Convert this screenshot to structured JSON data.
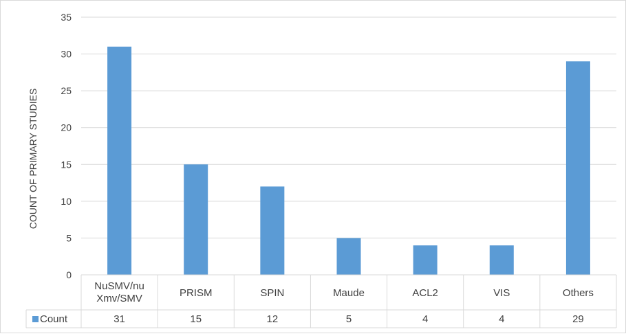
{
  "chart_data": {
    "type": "bar",
    "categories": [
      "NuSMV/nuXmv/SMV",
      "PRISM",
      "SPIN",
      "Maude",
      "ACL2",
      "VIS",
      "Others"
    ],
    "category_label_lines": [
      [
        "NuSMV/nu",
        "Xmv/SMV"
      ],
      [
        "PRISM"
      ],
      [
        "SPIN"
      ],
      [
        "Maude"
      ],
      [
        "ACL2"
      ],
      [
        "VIS"
      ],
      [
        "Others"
      ]
    ],
    "series": [
      {
        "name": "Count",
        "values": [
          31,
          15,
          12,
          5,
          4,
          4,
          29
        ],
        "color": "#5b9bd5"
      }
    ],
    "ylabel": "COUNT OF PRIMARY STUDIES",
    "xlabel": "",
    "ylim": [
      0,
      35
    ],
    "yticks": [
      0,
      5,
      10,
      15,
      20,
      25,
      30,
      35
    ],
    "grid": true,
    "legend": "data-table-left",
    "colors": {
      "grid": "#d9d9d9",
      "text": "#404040",
      "bar": "#5b9bd5"
    }
  }
}
